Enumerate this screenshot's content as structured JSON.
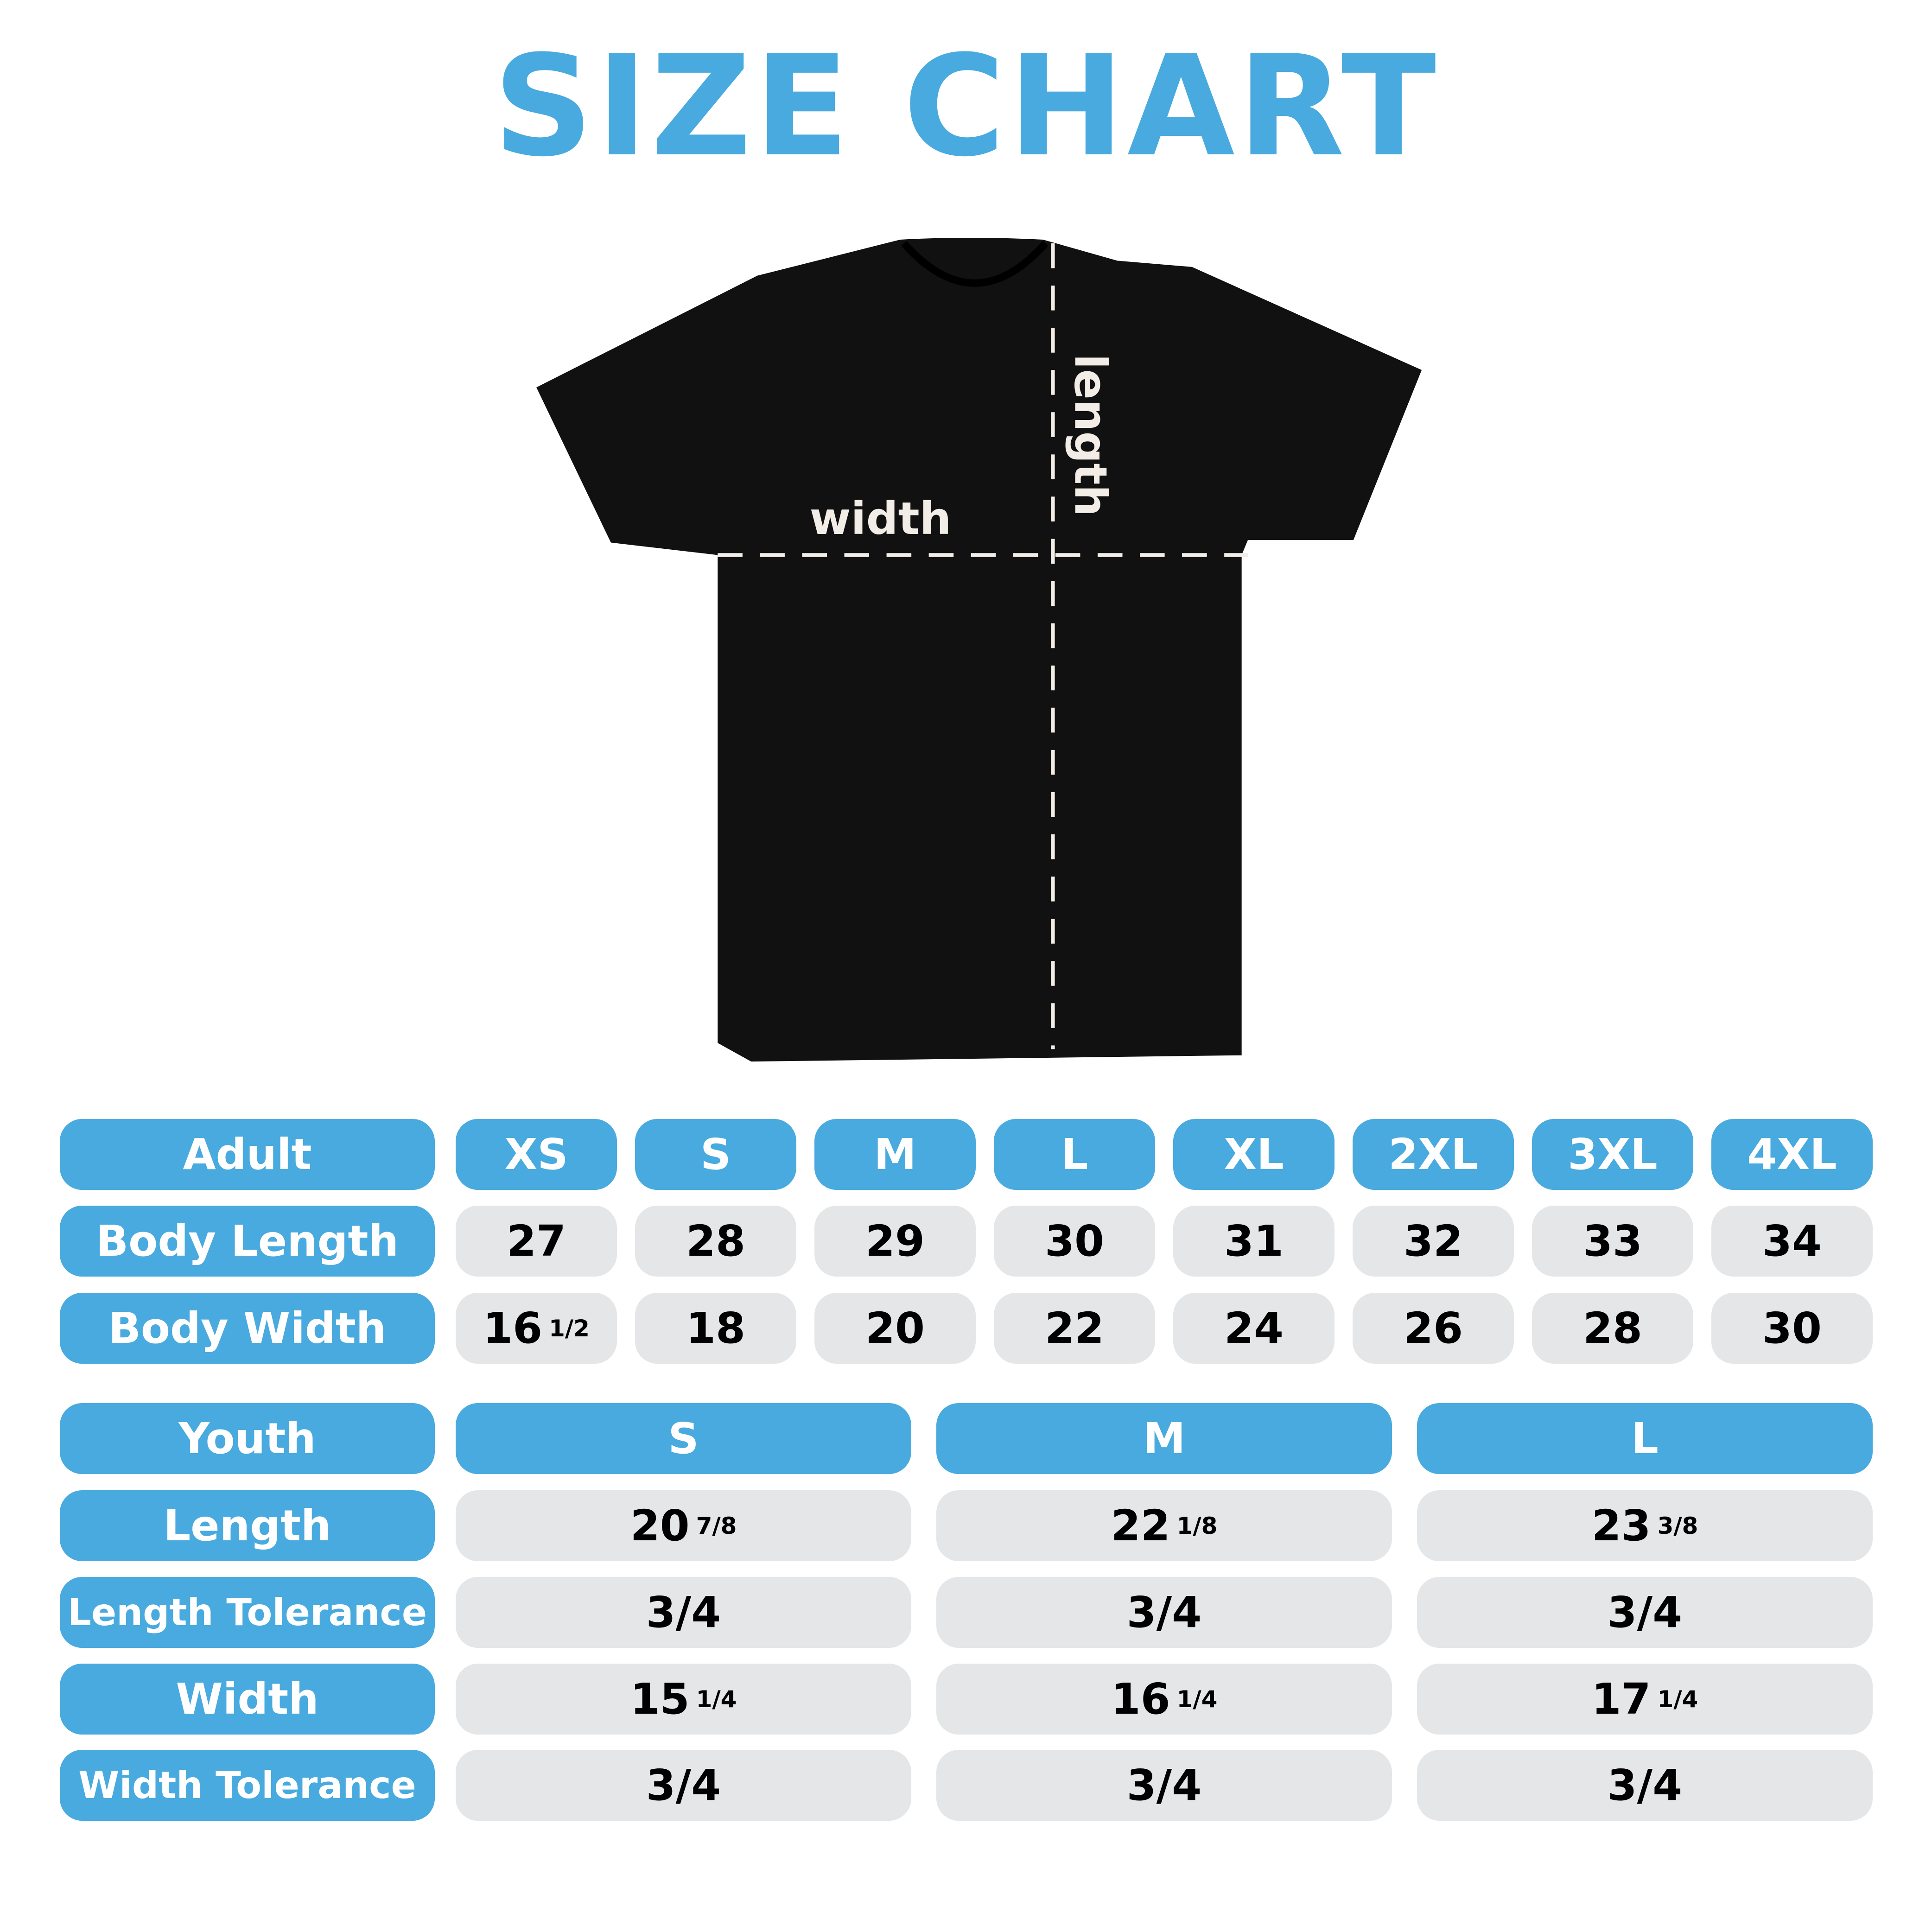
{
  "title": "SIZE CHART",
  "diagram": {
    "width_label": "width",
    "length_label": "length",
    "shirt_color": "#111111"
  },
  "colors": {
    "accent": "#48aade",
    "cell": "#e5e6e8"
  },
  "adult": {
    "header": "Adult",
    "sizes": [
      "XS",
      "S",
      "M",
      "L",
      "XL",
      "2XL",
      "3XL",
      "4XL"
    ],
    "rows": [
      {
        "label": "Body Length",
        "values": [
          {
            "w": "27"
          },
          {
            "w": "28"
          },
          {
            "w": "29"
          },
          {
            "w": "30"
          },
          {
            "w": "31"
          },
          {
            "w": "32"
          },
          {
            "w": "33"
          },
          {
            "w": "34"
          }
        ]
      },
      {
        "label": "Body Width",
        "values": [
          {
            "w": "16",
            "f": "1/2"
          },
          {
            "w": "18"
          },
          {
            "w": "20"
          },
          {
            "w": "22"
          },
          {
            "w": "24"
          },
          {
            "w": "26"
          },
          {
            "w": "28"
          },
          {
            "w": "30"
          }
        ]
      }
    ]
  },
  "youth": {
    "header": "Youth",
    "sizes": [
      "S",
      "M",
      "L"
    ],
    "rows": [
      {
        "label": "Length",
        "values": [
          {
            "w": "20",
            "f": "7/8"
          },
          {
            "w": "22",
            "f": "1/8"
          },
          {
            "w": "23",
            "f": "3/8"
          }
        ]
      },
      {
        "label": "Length Tolerance",
        "values": [
          {
            "w": "3/4"
          },
          {
            "w": "3/4"
          },
          {
            "w": "3/4"
          }
        ]
      },
      {
        "label": "Width",
        "values": [
          {
            "w": "15",
            "f": "1/4"
          },
          {
            "w": "16",
            "f": "1/4"
          },
          {
            "w": "17",
            "f": "1/4"
          }
        ]
      },
      {
        "label": "Width Tolerance",
        "values": [
          {
            "w": "3/4"
          },
          {
            "w": "3/4"
          },
          {
            "w": "3/4"
          }
        ]
      }
    ]
  }
}
